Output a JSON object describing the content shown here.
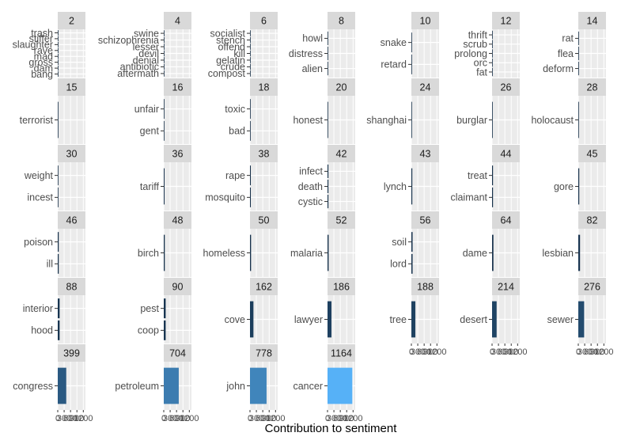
{
  "chart_data": {
    "type": "bar",
    "orientation": "horizontal",
    "facet_layout": "wrap",
    "xlabel": "Contribution to sentiment",
    "xlim": [
      0,
      1300
    ],
    "x_ticks": [
      0,
      300,
      600,
      900,
      1200
    ],
    "x_tick_labels": [
      "0",
      "300",
      "600",
      "900",
      "1200"
    ],
    "color_scale": {
      "low": "#132b43",
      "high": "#56b1f7"
    },
    "facets": [
      {
        "label": "2",
        "bars": [
          {
            "term": "trash",
            "value": 2
          },
          {
            "term": "stiffer",
            "value": 2
          },
          {
            "term": "slaughter",
            "value": 2
          },
          {
            "term": "rave",
            "value": 2
          },
          {
            "term": "mad",
            "value": 2
          },
          {
            "term": "gross",
            "value": 2
          },
          {
            "term": "dam",
            "value": 2
          },
          {
            "term": "bang",
            "value": 2
          }
        ]
      },
      {
        "label": "4",
        "bars": [
          {
            "term": "swine",
            "value": 4
          },
          {
            "term": "schizophrenia",
            "value": 4
          },
          {
            "term": "lesser",
            "value": 4
          },
          {
            "term": "devil",
            "value": 4
          },
          {
            "term": "denial",
            "value": 4
          },
          {
            "term": "antibiotic",
            "value": 4
          },
          {
            "term": "aftermath",
            "value": 4
          }
        ]
      },
      {
        "label": "6",
        "bars": [
          {
            "term": "socialist",
            "value": 6
          },
          {
            "term": "stench",
            "value": 6
          },
          {
            "term": "offend",
            "value": 6
          },
          {
            "term": "kill",
            "value": 6
          },
          {
            "term": "gelatin",
            "value": 6
          },
          {
            "term": "crude",
            "value": 6
          },
          {
            "term": "compost",
            "value": 6
          }
        ]
      },
      {
        "label": "8",
        "bars": [
          {
            "term": "howl",
            "value": 8
          },
          {
            "term": "distress",
            "value": 8
          },
          {
            "term": "alien",
            "value": 8
          }
        ]
      },
      {
        "label": "10",
        "bars": [
          {
            "term": "snake",
            "value": 10
          },
          {
            "term": "retard",
            "value": 10
          }
        ]
      },
      {
        "label": "12",
        "bars": [
          {
            "term": "thrift",
            "value": 12
          },
          {
            "term": "scrub",
            "value": 12
          },
          {
            "term": "prolong",
            "value": 12
          },
          {
            "term": "orc",
            "value": 12
          },
          {
            "term": "fat",
            "value": 12
          }
        ]
      },
      {
        "label": "14",
        "bars": [
          {
            "term": "rat",
            "value": 14
          },
          {
            "term": "flea",
            "value": 14
          },
          {
            "term": "deform",
            "value": 14
          }
        ]
      },
      {
        "label": "15",
        "bars": [
          {
            "term": "terrorist",
            "value": 15
          }
        ]
      },
      {
        "label": "16",
        "bars": [
          {
            "term": "unfair",
            "value": 16
          },
          {
            "term": "gent",
            "value": 16
          }
        ]
      },
      {
        "label": "18",
        "bars": [
          {
            "term": "toxic",
            "value": 18
          },
          {
            "term": "bad",
            "value": 18
          }
        ]
      },
      {
        "label": "20",
        "bars": [
          {
            "term": "honest",
            "value": 20
          }
        ]
      },
      {
        "label": "24",
        "bars": [
          {
            "term": "shanghai",
            "value": 24
          }
        ]
      },
      {
        "label": "26",
        "bars": [
          {
            "term": "burglar",
            "value": 26
          }
        ]
      },
      {
        "label": "28",
        "bars": [
          {
            "term": "holocaust",
            "value": 28
          }
        ]
      },
      {
        "label": "30",
        "bars": [
          {
            "term": "weight",
            "value": 30
          },
          {
            "term": "incest",
            "value": 30
          }
        ]
      },
      {
        "label": "36",
        "bars": [
          {
            "term": "tariff",
            "value": 36
          }
        ]
      },
      {
        "label": "38",
        "bars": [
          {
            "term": "rape",
            "value": 38
          },
          {
            "term": "mosquito",
            "value": 38
          }
        ]
      },
      {
        "label": "42",
        "bars": [
          {
            "term": "infect",
            "value": 42
          },
          {
            "term": "death",
            "value": 42
          },
          {
            "term": "cystic",
            "value": 42
          }
        ]
      },
      {
        "label": "43",
        "bars": [
          {
            "term": "lynch",
            "value": 43
          }
        ]
      },
      {
        "label": "44",
        "bars": [
          {
            "term": "treat",
            "value": 44
          },
          {
            "term": "claimant",
            "value": 44
          }
        ]
      },
      {
        "label": "45",
        "bars": [
          {
            "term": "gore",
            "value": 45
          }
        ]
      },
      {
        "label": "46",
        "bars": [
          {
            "term": "poison",
            "value": 46
          },
          {
            "term": "ill",
            "value": 46
          }
        ]
      },
      {
        "label": "48",
        "bars": [
          {
            "term": "birch",
            "value": 48
          }
        ]
      },
      {
        "label": "50",
        "bars": [
          {
            "term": "homeless",
            "value": 50
          }
        ]
      },
      {
        "label": "52",
        "bars": [
          {
            "term": "malaria",
            "value": 52
          }
        ]
      },
      {
        "label": "56",
        "bars": [
          {
            "term": "soil",
            "value": 56
          },
          {
            "term": "lord",
            "value": 56
          }
        ]
      },
      {
        "label": "64",
        "bars": [
          {
            "term": "dame",
            "value": 64
          }
        ]
      },
      {
        "label": "82",
        "bars": [
          {
            "term": "lesbian",
            "value": 82
          }
        ]
      },
      {
        "label": "88",
        "bars": [
          {
            "term": "interior",
            "value": 88
          },
          {
            "term": "hood",
            "value": 88
          }
        ]
      },
      {
        "label": "90",
        "bars": [
          {
            "term": "pest",
            "value": 90
          },
          {
            "term": "coop",
            "value": 90
          }
        ]
      },
      {
        "label": "162",
        "bars": [
          {
            "term": "cove",
            "value": 162
          }
        ]
      },
      {
        "label": "186",
        "bars": [
          {
            "term": "lawyer",
            "value": 186
          }
        ]
      },
      {
        "label": "188",
        "bars": [
          {
            "term": "tree",
            "value": 188
          }
        ]
      },
      {
        "label": "214",
        "bars": [
          {
            "term": "desert",
            "value": 214
          }
        ]
      },
      {
        "label": "276",
        "bars": [
          {
            "term": "sewer",
            "value": 276
          }
        ]
      },
      {
        "label": "399",
        "bars": [
          {
            "term": "congress",
            "value": 399
          }
        ]
      },
      {
        "label": "704",
        "bars": [
          {
            "term": "petroleum",
            "value": 704
          }
        ]
      },
      {
        "label": "778",
        "bars": [
          {
            "term": "john",
            "value": 778
          }
        ]
      },
      {
        "label": "1164",
        "bars": [
          {
            "term": "cancer",
            "value": 1164
          }
        ]
      }
    ]
  }
}
